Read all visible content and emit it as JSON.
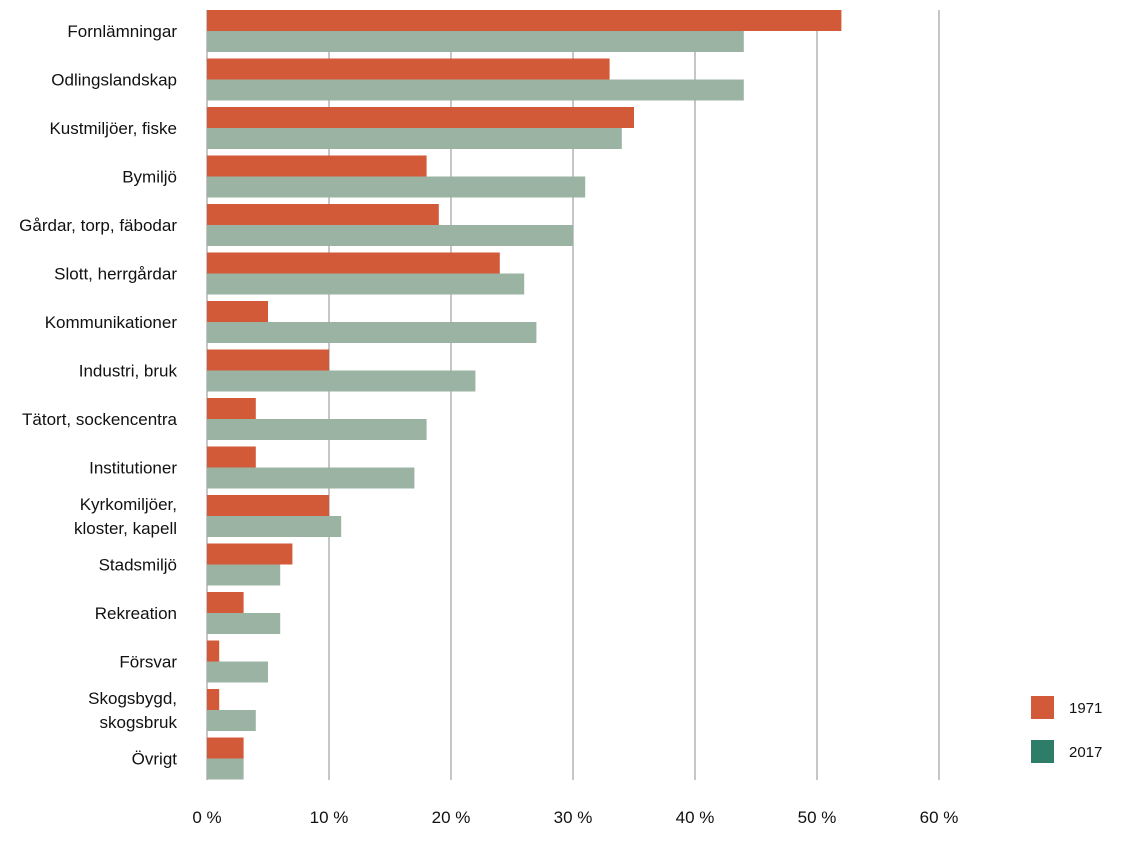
{
  "chart_data": {
    "type": "bar",
    "orientation": "horizontal",
    "categories": [
      [
        "Fornlämningar"
      ],
      [
        "Odlingslandskap"
      ],
      [
        "Kustmiljöer, fiske"
      ],
      [
        "Bymiljö"
      ],
      [
        "Gårdar, torp, fäbodar"
      ],
      [
        "Slott, herrgårdar"
      ],
      [
        "Kommunikationer"
      ],
      [
        "Industri, bruk"
      ],
      [
        "Tätort, sockencentra"
      ],
      [
        "Institutioner"
      ],
      [
        "Kyrkomiljöer,",
        "kloster, kapell"
      ],
      [
        "Stadsmiljö"
      ],
      [
        "Rekreation"
      ],
      [
        "Försvar"
      ],
      [
        "Skogsbygd,",
        "skogsbruk"
      ],
      [
        "Övrigt"
      ]
    ],
    "series": [
      {
        "name": "1971",
        "color": "#d35a38",
        "values": [
          52,
          33,
          35,
          18,
          19,
          24,
          5,
          10,
          4,
          4,
          10,
          7,
          3,
          1,
          1,
          3
        ]
      },
      {
        "name": "2017",
        "color": "#9bb3a3",
        "values": [
          44,
          44,
          34,
          31,
          30,
          26,
          27,
          22,
          18,
          17,
          11,
          6,
          6,
          5,
          4,
          3
        ]
      }
    ],
    "legend_colors": [
      "#d35a38",
      "#2e7d68"
    ],
    "xlim": [
      0,
      60
    ],
    "xticks": [
      0,
      10,
      20,
      30,
      40,
      50,
      60
    ],
    "xtick_labels": [
      "0 %",
      "10 %",
      "20 %",
      "30 %",
      "40 %",
      "50 %",
      "60 %"
    ],
    "grid": "vertical",
    "legend_position": "bottom-right",
    "title": "",
    "xlabel": "",
    "ylabel": ""
  }
}
